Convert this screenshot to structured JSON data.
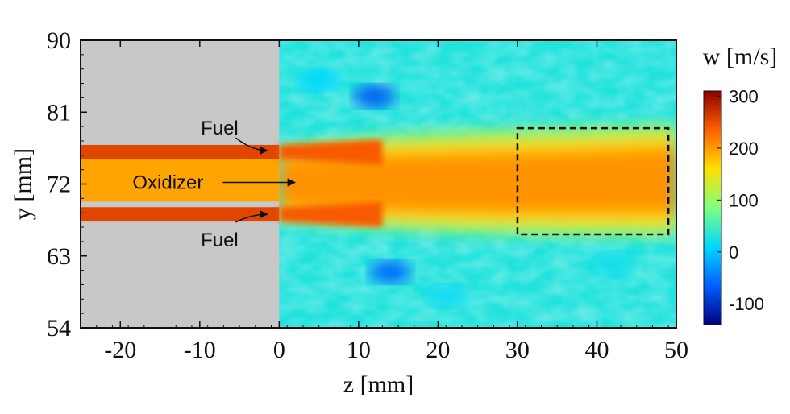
{
  "chart_data": {
    "type": "heatmap",
    "xlabel": "z [mm]",
    "ylabel": "y [mm]",
    "xlim": [
      -25,
      50
    ],
    "ylim": [
      54,
      90
    ],
    "xticks": [
      -20,
      -10,
      0,
      10,
      20,
      30,
      40,
      50
    ],
    "yticks": [
      54,
      63,
      72,
      81,
      90
    ],
    "colorbar": {
      "label": "w [m/s]",
      "range": [
        -140,
        310
      ],
      "ticks": [
        -100,
        0,
        100,
        200,
        300
      ],
      "colormap": [
        "#00007f",
        "#0060ff",
        "#00d8ff",
        "#7fff7f",
        "#ffe000",
        "#ff6000",
        "#8b0000"
      ]
    },
    "masked_region": {
      "x": [
        -25,
        0
      ],
      "y": [
        54,
        90
      ],
      "color": "#c8c8c8"
    },
    "fuel_jets_y": [
      76,
      68.2
    ],
    "oxidizer_y": [
      69.8,
      75.2
    ],
    "roi_box": {
      "x": [
        30,
        49
      ],
      "y": [
        65.7,
        79
      ]
    },
    "annotations": [
      {
        "text": "Fuel",
        "x": -7.5,
        "y": 79,
        "arrow_to": [
          -1.5,
          76.2
        ]
      },
      {
        "text": "Oxidizer",
        "x": -14,
        "y": 72.2,
        "arrow_to": [
          2,
          72.2
        ]
      },
      {
        "text": "Fuel",
        "x": -7.5,
        "y": 65,
        "arrow_to": [
          -1.5,
          68.2
        ]
      }
    ]
  }
}
